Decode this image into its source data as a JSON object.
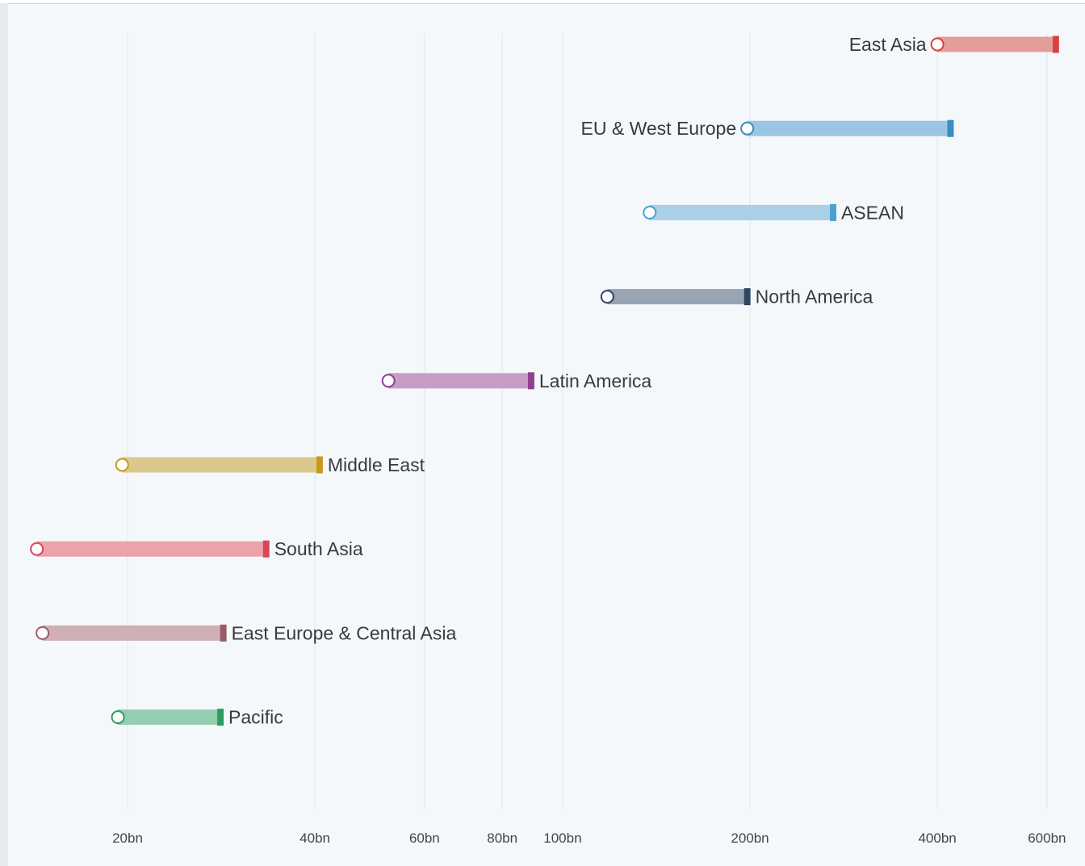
{
  "chart_data": {
    "type": "dumbbell",
    "x_scale": "log",
    "x_ticks": [
      {
        "value": 20,
        "label": "20bn"
      },
      {
        "value": 40,
        "label": "40bn"
      },
      {
        "value": 60,
        "label": "60bn"
      },
      {
        "value": 80,
        "label": "80bn"
      },
      {
        "value": 100,
        "label": "100bn"
      },
      {
        "value": 200,
        "label": "200bn"
      },
      {
        "value": 400,
        "label": "400bn"
      },
      {
        "value": 600,
        "label": "600bn"
      }
    ],
    "xlim": [
      14,
      640
    ],
    "grid": "vertical",
    "rows": [
      {
        "name": "East Asia",
        "start": 400,
        "end": 620,
        "label_side": "left",
        "color": "#d9413f",
        "bar_color": "#e39e9a"
      },
      {
        "name": "EU & West Europe",
        "start": 198,
        "end": 420,
        "label_side": "left",
        "color": "#3c8cc4",
        "bar_color": "#9ac6e2"
      },
      {
        "name": "ASEAN",
        "start": 138,
        "end": 272,
        "label_side": "right",
        "color": "#4aa0cf",
        "bar_color": "#a9d0e6"
      },
      {
        "name": "North America",
        "start": 118,
        "end": 198,
        "label_side": "right",
        "color": "#2e4661",
        "bar_color": "#97a4b2"
      },
      {
        "name": "Latin America",
        "start": 52.5,
        "end": 89,
        "label_side": "right",
        "color": "#8e3f8f",
        "bar_color": "#c79dc6"
      },
      {
        "name": "Middle East",
        "start": 19.6,
        "end": 40.7,
        "label_side": "right",
        "color": "#c69a1a",
        "bar_color": "#dac88d"
      },
      {
        "name": "South Asia",
        "start": 14.3,
        "end": 33.4,
        "label_side": "right",
        "color": "#d9475a",
        "bar_color": "#eba2ab"
      },
      {
        "name": "East Europe & Central Asia",
        "start": 14.6,
        "end": 28.5,
        "label_side": "right",
        "color": "#9b5a64",
        "bar_color": "#d0b0b5"
      },
      {
        "name": "Pacific",
        "start": 19.3,
        "end": 28.2,
        "label_side": "right",
        "color": "#2f9a64",
        "bar_color": "#94cdb0"
      }
    ]
  }
}
